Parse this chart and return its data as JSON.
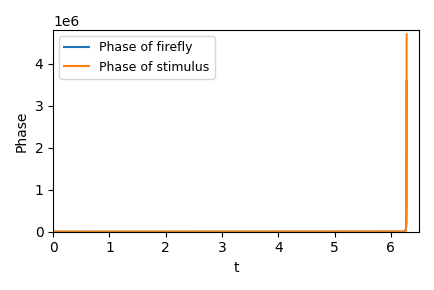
{
  "xlabel": "t",
  "ylabel": "Phase",
  "xlim": [
    0,
    6.5
  ],
  "ylim": [
    0,
    4800000
  ],
  "yticks": [
    0,
    1000000,
    2000000,
    3000000,
    4000000
  ],
  "firefly_color": "#1f77b4",
  "stimulus_color": "#ff7f0e",
  "firefly_label": "Phase of firefly",
  "stimulus_label": "Phase of stimulus",
  "t_end": 6.28,
  "n_points": 2000,
  "legend_loc": "upper left",
  "linewidth": 1.5
}
